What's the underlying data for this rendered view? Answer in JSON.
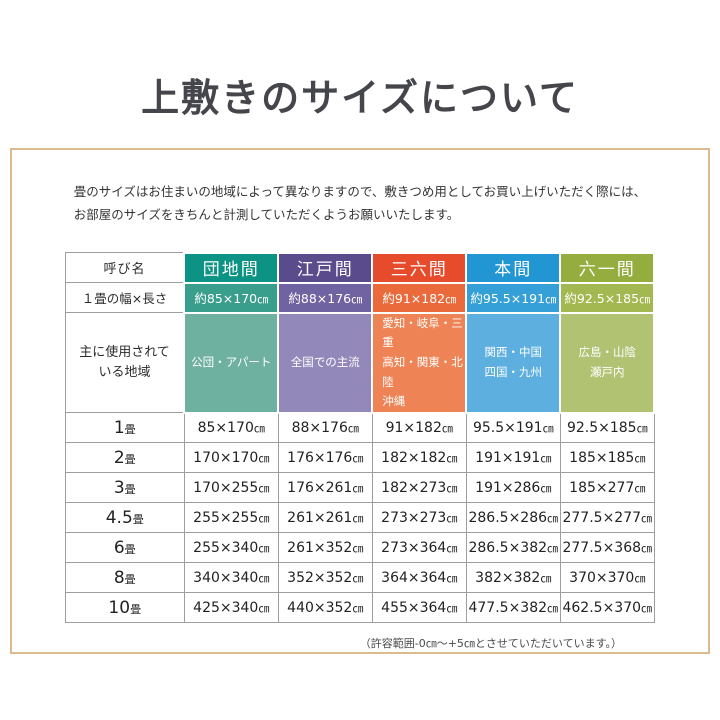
{
  "title": "上敷きのサイズについて",
  "description": {
    "line1": "畳のサイズはお住まいの地域によって異なりますので、敷きつめ用としてお買い上げいただく際には、",
    "line2": "お部屋のサイズをきちんと計測していただくようお願いいたします。"
  },
  "box_border_color": "#dcba90",
  "table": {
    "corner_label": "呼び名",
    "size_row_label": "１畳の幅×長さ",
    "region_row_label": "主に使用されて\nいる地域",
    "unit_cm": "㎝",
    "unit_tatami": "畳",
    "columns": [
      {
        "name": "団地間",
        "size": "約85×170",
        "region": "公団・アパート",
        "colors": {
          "header": "#0d9383",
          "size": "#3a9e8d",
          "region": "#6fb1a0"
        }
      },
      {
        "name": "江戸間",
        "size": "約88×176",
        "region": "全国での主流",
        "colors": {
          "header": "#5a4b8d",
          "size": "#6f63a1",
          "region": "#9289ba"
        }
      },
      {
        "name": "三六間",
        "size": "約91×182",
        "region": "愛知・岐阜・三重\n高知・関東・北陸\n沖縄",
        "colors": {
          "header": "#e64b2c",
          "size": "#ea6a3c",
          "region": "#ee8355"
        }
      },
      {
        "name": "本間",
        "size": "約95.5×191",
        "region": "関西・中国\n四国・九州",
        "colors": {
          "header": "#2295d3",
          "size": "#35a0d8",
          "region": "#5cafdf"
        }
      },
      {
        "name": "六一間",
        "size": "約92.5×185",
        "region": "広島・山陰\n瀬戸内",
        "colors": {
          "header": "#95ac3e",
          "size": "#a3b850",
          "region": "#b1c273"
        }
      }
    ],
    "rows": [
      {
        "label": "1",
        "values": [
          "85×170",
          "88×176",
          "91×182",
          "95.5×191",
          "92.5×185"
        ]
      },
      {
        "label": "2",
        "values": [
          "170×170",
          "176×176",
          "182×182",
          "191×191",
          "185×185"
        ]
      },
      {
        "label": "3",
        "values": [
          "170×255",
          "176×261",
          "182×273",
          "191×286",
          "185×277"
        ]
      },
      {
        "label": "4.5",
        "values": [
          "255×255",
          "261×261",
          "273×273",
          "286.5×286",
          "277.5×277"
        ]
      },
      {
        "label": "6",
        "values": [
          "255×340",
          "261×352",
          "273×364",
          "286.5×382",
          "277.5×368"
        ]
      },
      {
        "label": "8",
        "values": [
          "340×340",
          "352×352",
          "364×364",
          "382×382",
          "370×370"
        ]
      },
      {
        "label": "10",
        "values": [
          "425×340",
          "440×352",
          "455×364",
          "477.5×382",
          "462.5×370"
        ]
      }
    ]
  },
  "footnote": "（許容範囲-0㎝～+5㎝とさせていただいています。）"
}
